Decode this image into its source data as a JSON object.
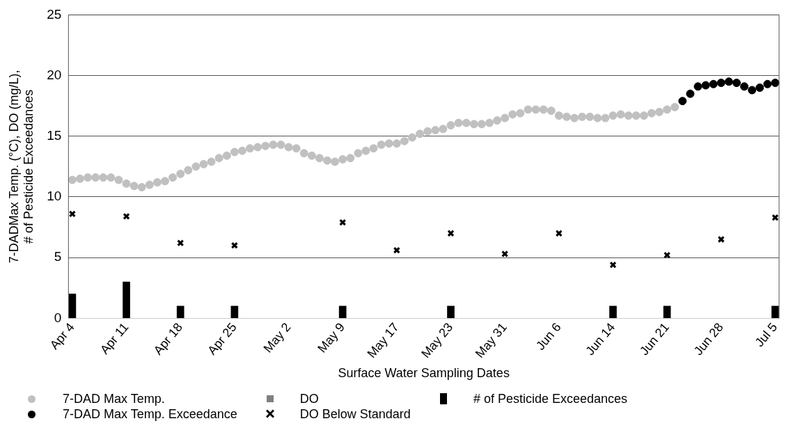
{
  "chart_data": {
    "type": "scatter",
    "ylabel": "7-DADMax Temp. (°C), DO (mg/L), # of Pesticide Exceedances",
    "xlabel": "Surface Water Sampling Dates",
    "categories": [
      "Apr 4",
      null,
      null,
      null,
      null,
      null,
      null,
      "Apr 11",
      null,
      null,
      null,
      null,
      null,
      null,
      "Apr 18",
      null,
      null,
      null,
      null,
      null,
      null,
      "Apr 25",
      null,
      null,
      null,
      null,
      null,
      null,
      "May 2",
      null,
      null,
      null,
      null,
      null,
      null,
      "May 9",
      null,
      null,
      null,
      null,
      null,
      null,
      "May 17",
      null,
      null,
      null,
      null,
      null,
      null,
      "May 23",
      null,
      null,
      null,
      null,
      null,
      null,
      "May 31",
      null,
      null,
      null,
      null,
      null,
      null,
      "Jun 6",
      null,
      null,
      null,
      null,
      null,
      null,
      "Jun 14",
      null,
      null,
      null,
      null,
      null,
      null,
      "Jun 21",
      null,
      null,
      null,
      null,
      null,
      null,
      "Jun 28",
      null,
      null,
      null,
      null,
      null,
      null,
      "Jul 5"
    ],
    "ylim": [
      0,
      25
    ],
    "yticks": [
      0,
      5,
      10,
      15,
      20,
      25
    ],
    "grid": "y",
    "legend": "bottom",
    "series": [
      {
        "name": "7-DAD Max Temp.",
        "marker": "circle",
        "color": "#c0c0c0",
        "values": [
          11.4,
          11.5,
          11.6,
          11.6,
          11.6,
          11.6,
          11.4,
          11.1,
          10.9,
          10.8,
          11.0,
          11.2,
          11.3,
          11.6,
          11.9,
          12.2,
          12.5,
          12.7,
          12.9,
          13.2,
          13.4,
          13.7,
          13.8,
          14.0,
          14.1,
          14.2,
          14.3,
          14.3,
          14.1,
          14.0,
          13.6,
          13.4,
          13.2,
          13.0,
          12.9,
          13.1,
          13.2,
          13.6,
          13.8,
          14.0,
          14.3,
          14.4,
          14.4,
          14.6,
          14.9,
          15.2,
          15.4,
          15.5,
          15.6,
          15.9,
          16.1,
          16.1,
          16.0,
          16.0,
          16.1,
          16.3,
          16.5,
          16.8,
          16.9,
          17.2,
          17.2,
          17.2,
          17.1,
          16.7,
          16.6,
          16.5,
          16.6,
          16.6,
          16.5,
          16.5,
          16.7,
          16.8,
          16.7,
          16.7,
          16.7,
          16.9,
          17.0,
          17.2,
          17.4,
          null,
          null,
          null,
          null,
          null,
          null,
          null,
          null,
          null,
          null,
          null,
          null,
          null
        ]
      },
      {
        "name": "7-DAD Max Temp. Exceedance",
        "marker": "circle",
        "color": "#000000",
        "values": [
          null,
          null,
          null,
          null,
          null,
          null,
          null,
          null,
          null,
          null,
          null,
          null,
          null,
          null,
          null,
          null,
          null,
          null,
          null,
          null,
          null,
          null,
          null,
          null,
          null,
          null,
          null,
          null,
          null,
          null,
          null,
          null,
          null,
          null,
          null,
          null,
          null,
          null,
          null,
          null,
          null,
          null,
          null,
          null,
          null,
          null,
          null,
          null,
          null,
          null,
          null,
          null,
          null,
          null,
          null,
          null,
          null,
          null,
          null,
          null,
          null,
          null,
          null,
          null,
          null,
          null,
          null,
          null,
          null,
          null,
          null,
          null,
          null,
          null,
          null,
          null,
          null,
          null,
          null,
          17.9,
          18.5,
          19.1,
          19.2,
          19.3,
          19.4,
          19.5,
          19.4,
          19.1,
          18.8,
          19.0,
          19.3,
          19.4
        ]
      },
      {
        "name": "DO",
        "marker": "square",
        "color": "#808080",
        "values": [
          null,
          null,
          null,
          null,
          null,
          null,
          null,
          null,
          null,
          null,
          null,
          null,
          null,
          null,
          null,
          null,
          null,
          null,
          null,
          null,
          null,
          null,
          null,
          null,
          null,
          null,
          null,
          null,
          null,
          null,
          null,
          null,
          null,
          null,
          null,
          null,
          null,
          null,
          null,
          null,
          null,
          null,
          null,
          null,
          null,
          null,
          null,
          null,
          null,
          null,
          null,
          null,
          null,
          null,
          null,
          null,
          null,
          null,
          null,
          null,
          null,
          null,
          null,
          null,
          null,
          null,
          null,
          null,
          null,
          null,
          null,
          null,
          null,
          null,
          null,
          null,
          null,
          null,
          null,
          null,
          null,
          null,
          null,
          null,
          null,
          null,
          null,
          null,
          null,
          null,
          null,
          null
        ]
      },
      {
        "name": "DO Below Standard",
        "marker": "cross",
        "color": "#000000",
        "values": [
          8.6,
          null,
          null,
          null,
          null,
          null,
          null,
          8.4,
          null,
          null,
          null,
          null,
          null,
          null,
          6.2,
          null,
          null,
          null,
          null,
          null,
          null,
          6.0,
          null,
          null,
          null,
          null,
          null,
          null,
          null,
          null,
          null,
          null,
          null,
          null,
          null,
          7.9,
          null,
          null,
          null,
          null,
          null,
          null,
          5.6,
          null,
          null,
          null,
          null,
          null,
          null,
          7.0,
          null,
          null,
          null,
          null,
          null,
          null,
          5.3,
          null,
          null,
          null,
          null,
          null,
          null,
          7.0,
          null,
          null,
          null,
          null,
          null,
          null,
          4.4,
          null,
          null,
          null,
          null,
          null,
          null,
          5.2,
          null,
          null,
          null,
          null,
          null,
          null,
          6.5,
          null,
          null,
          null,
          null,
          null,
          null,
          8.3
        ]
      },
      {
        "name": "# of Pesticide Exceedances",
        "type": "bar",
        "color": "#000000",
        "values": [
          2,
          null,
          null,
          null,
          null,
          null,
          null,
          3,
          null,
          null,
          null,
          null,
          null,
          null,
          1,
          null,
          null,
          null,
          null,
          null,
          null,
          1,
          null,
          null,
          null,
          null,
          null,
          null,
          null,
          null,
          null,
          null,
          null,
          null,
          null,
          1,
          null,
          null,
          null,
          null,
          null,
          null,
          null,
          null,
          null,
          null,
          null,
          null,
          null,
          1,
          null,
          null,
          null,
          null,
          null,
          null,
          null,
          null,
          null,
          null,
          null,
          null,
          null,
          null,
          null,
          null,
          null,
          null,
          null,
          null,
          1,
          null,
          null,
          null,
          null,
          null,
          null,
          1,
          null,
          null,
          null,
          null,
          null,
          null,
          null,
          null,
          null,
          null,
          null,
          null,
          null,
          1
        ]
      }
    ]
  }
}
